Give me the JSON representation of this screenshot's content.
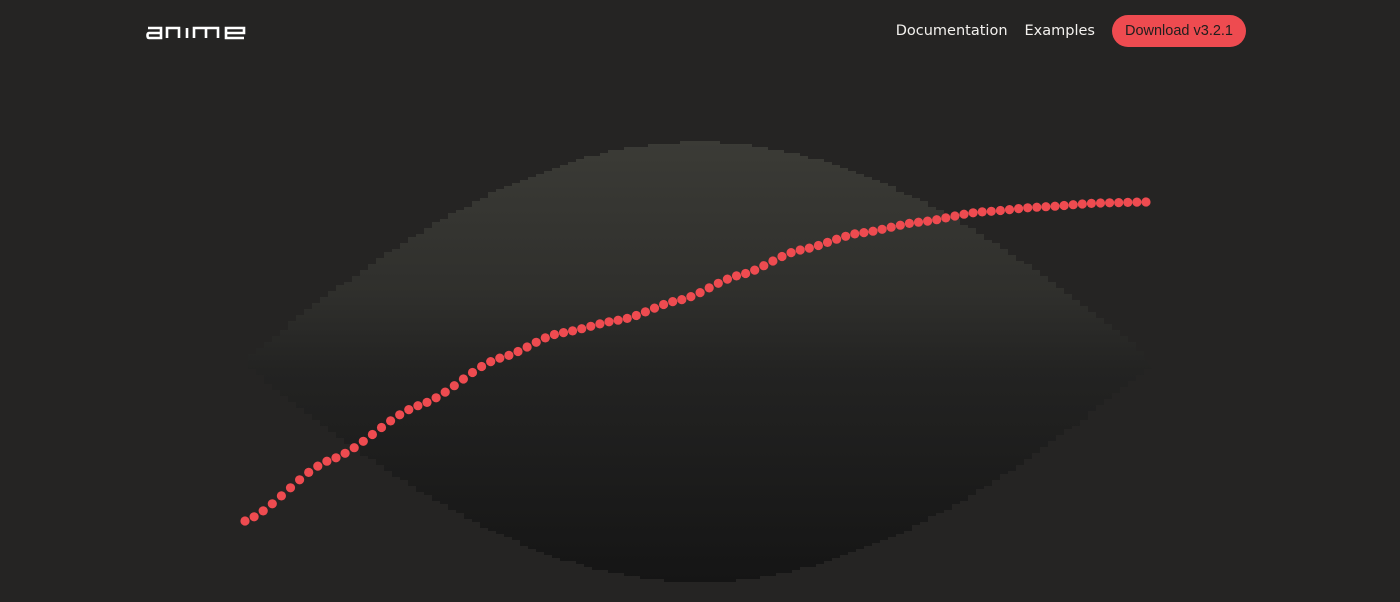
{
  "logo": {
    "text": "anime",
    "icon": "anime-wordmark-logo"
  },
  "nav": {
    "documentation": "Documentation",
    "examples": "Examples",
    "download": "Download v3.2.1"
  },
  "colors": {
    "background": "#252423",
    "accent": "#ee4b50",
    "nav_text": "#f3f1ee",
    "shape_top": "#3a3a35",
    "shape_bottom": "#161616"
  }
}
